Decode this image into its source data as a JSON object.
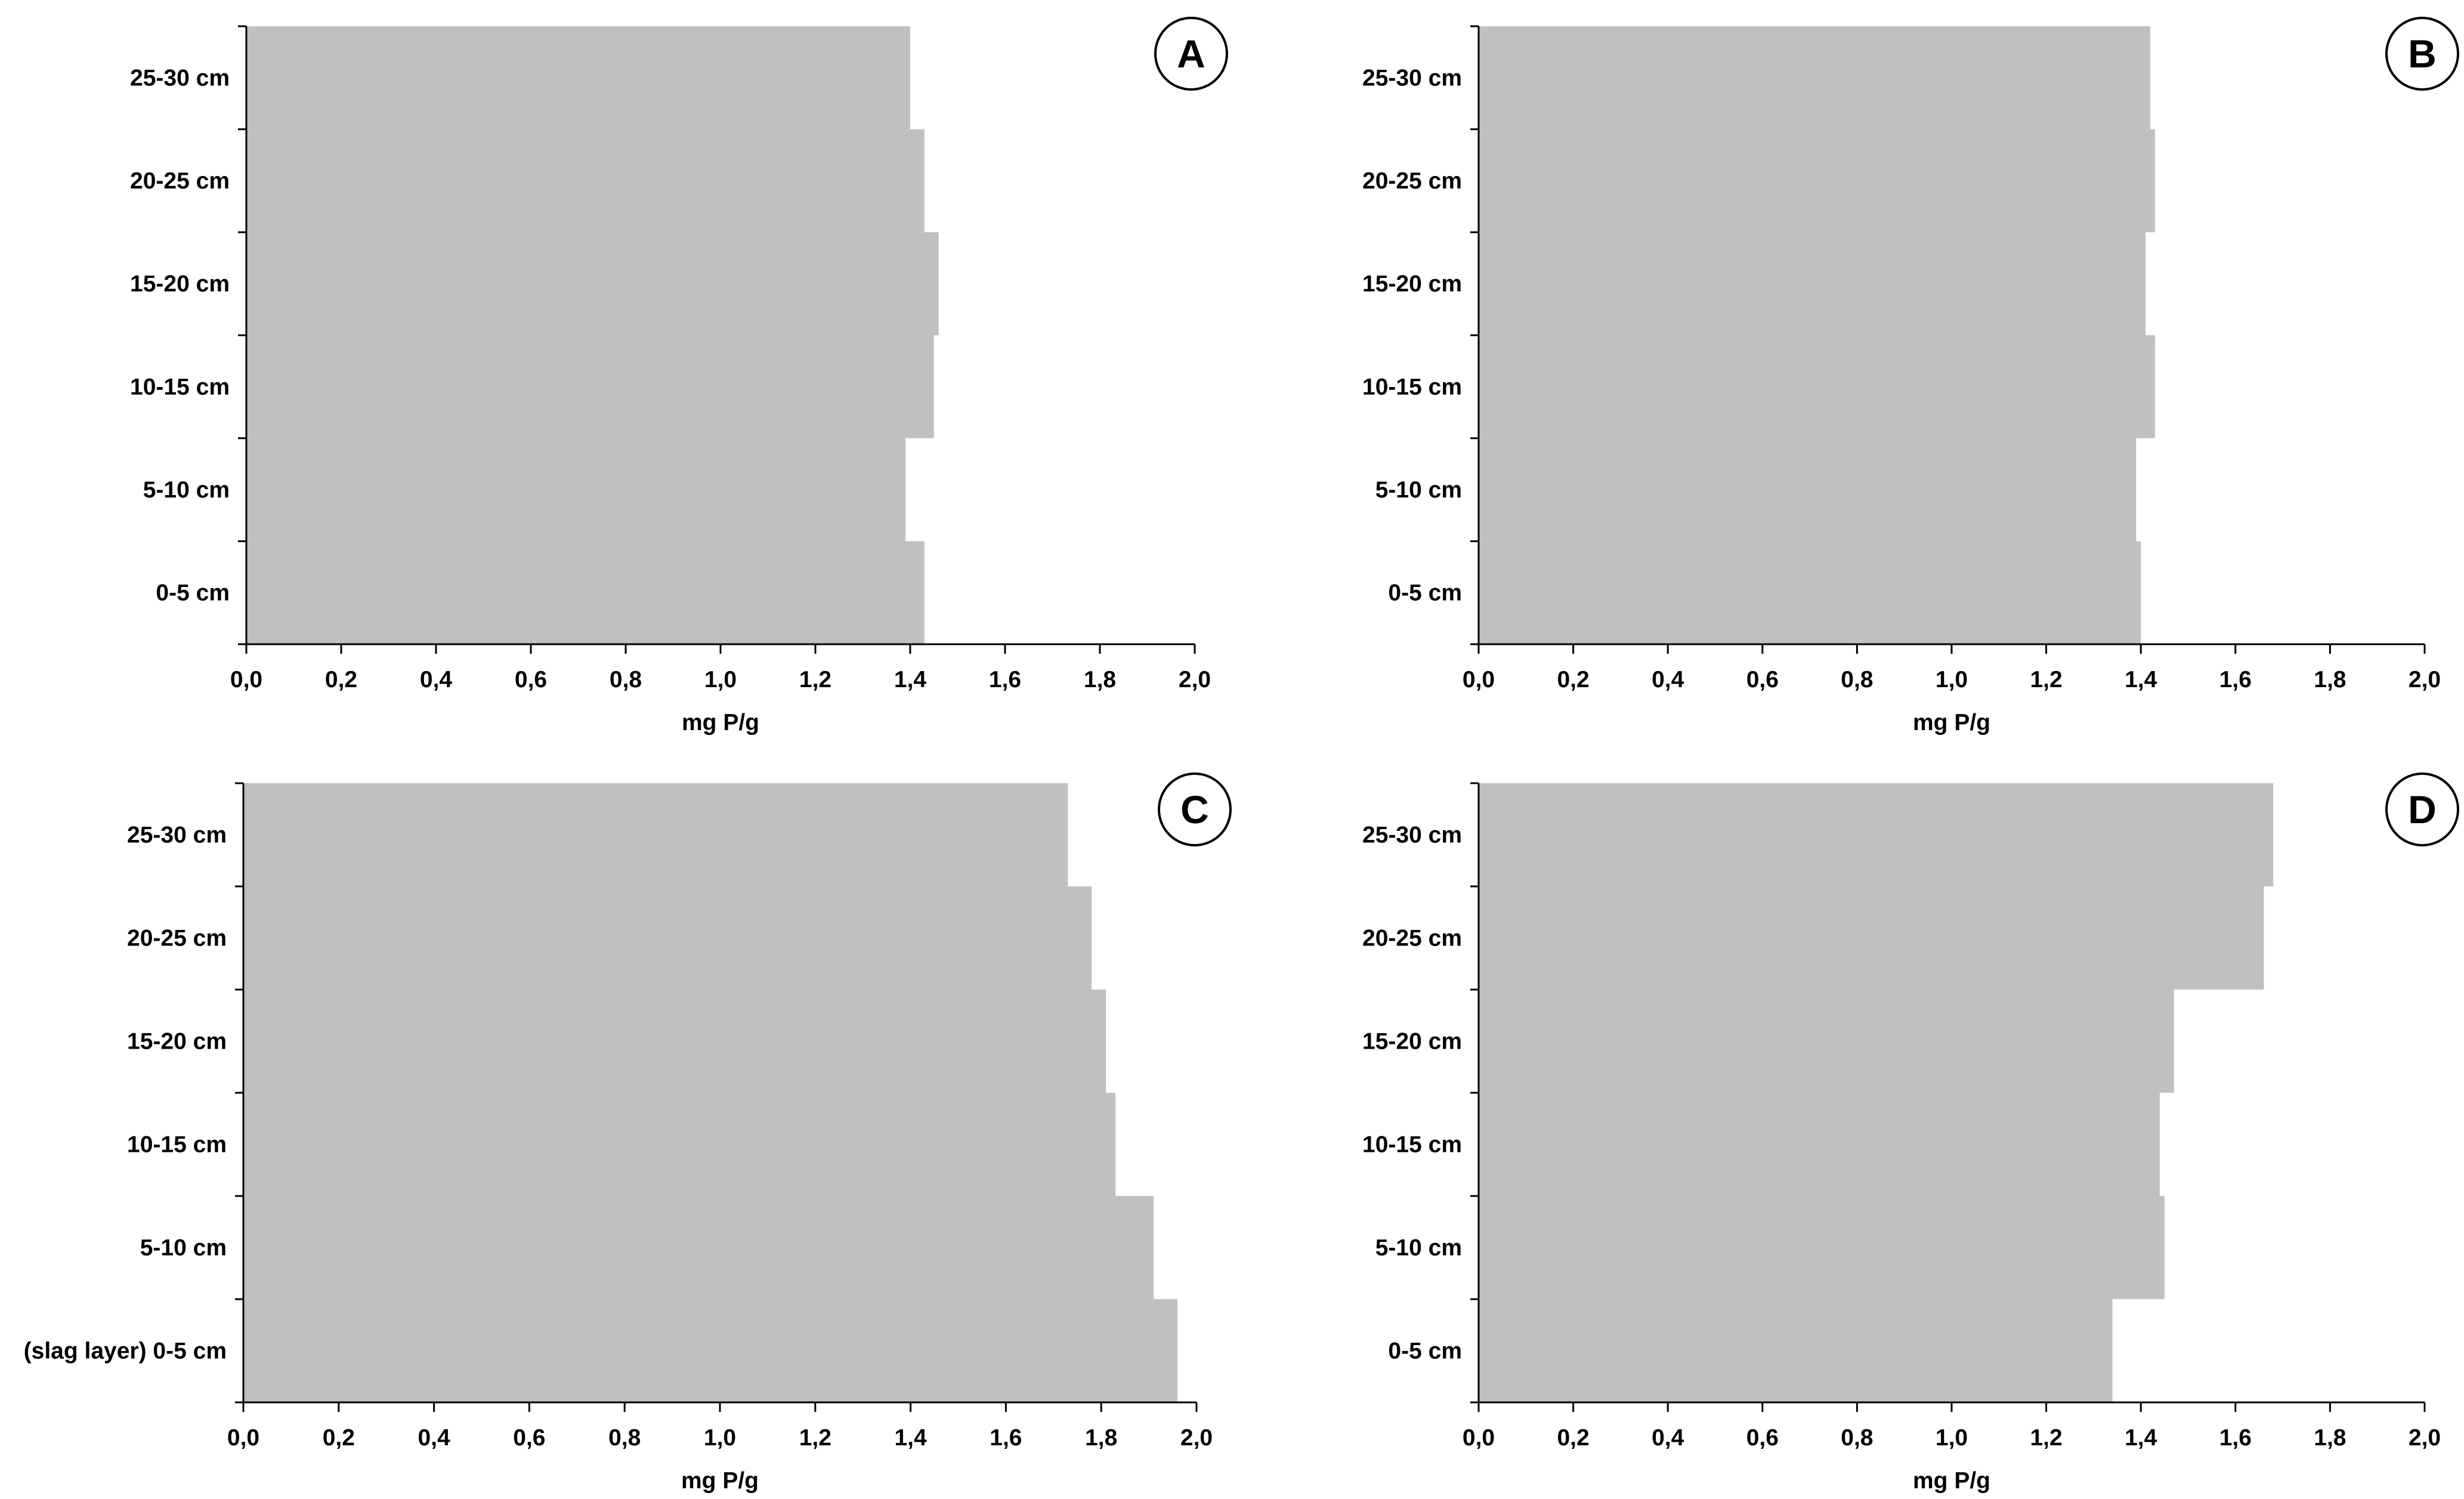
{
  "figure": {
    "colors": {
      "bar": "#c0c0c0",
      "axis": "#000000",
      "background": "#ffffff"
    }
  },
  "chart_data": [
    {
      "panel": "A",
      "type": "bar",
      "orientation": "horizontal",
      "categories": [
        "0-5 cm",
        "5-10 cm",
        "10-15 cm",
        "15-20 cm",
        "20-25 cm",
        "25-30 cm"
      ],
      "values": [
        1.43,
        1.39,
        1.45,
        1.46,
        1.43,
        1.4
      ],
      "xlabel": "mg P/g",
      "xlim": [
        0,
        2.0
      ],
      "xticks": [
        "0,0",
        "0,2",
        "0,4",
        "0,6",
        "0,8",
        "1,0",
        "1,2",
        "1,4",
        "1,6",
        "1,8",
        "2,0"
      ],
      "grid": false,
      "legend": "none"
    },
    {
      "panel": "B",
      "type": "bar",
      "orientation": "horizontal",
      "categories": [
        "0-5 cm",
        "5-10 cm",
        "10-15 cm",
        "15-20 cm",
        "20-25 cm",
        "25-30 cm"
      ],
      "values": [
        1.4,
        1.39,
        1.43,
        1.41,
        1.43,
        1.42
      ],
      "xlabel": "mg P/g",
      "xlim": [
        0,
        2.0
      ],
      "xticks": [
        "0,0",
        "0,2",
        "0,4",
        "0,6",
        "0,8",
        "1,0",
        "1,2",
        "1,4",
        "1,6",
        "1,8",
        "2,0"
      ],
      "grid": false,
      "legend": "none"
    },
    {
      "panel": "C",
      "type": "bar",
      "orientation": "horizontal",
      "categories": [
        "(slag layer) 0-5 cm",
        "5-10 cm",
        "10-15 cm",
        "15-20 cm",
        "20-25 cm",
        "25-30 cm"
      ],
      "values": [
        1.96,
        1.91,
        1.83,
        1.81,
        1.78,
        1.73
      ],
      "xlabel": "mg P/g",
      "xlim": [
        0,
        2.0
      ],
      "xticks": [
        "0,0",
        "0,2",
        "0,4",
        "0,6",
        "0,8",
        "1,0",
        "1,2",
        "1,4",
        "1,6",
        "1,8",
        "2,0"
      ],
      "grid": false,
      "legend": "none"
    },
    {
      "panel": "D",
      "type": "bar",
      "orientation": "horizontal",
      "categories": [
        "0-5 cm",
        "5-10 cm",
        "10-15 cm",
        "15-20 cm",
        "20-25 cm",
        "25-30 cm"
      ],
      "values": [
        1.34,
        1.45,
        1.44,
        1.47,
        1.66,
        1.68
      ],
      "xlabel": "mg P/g",
      "xlim": [
        0,
        2.0
      ],
      "xticks": [
        "0,0",
        "0,2",
        "0,4",
        "0,6",
        "0,8",
        "1,0",
        "1,2",
        "1,4",
        "1,6",
        "1,8",
        "2,0"
      ],
      "grid": false,
      "legend": "none"
    }
  ]
}
